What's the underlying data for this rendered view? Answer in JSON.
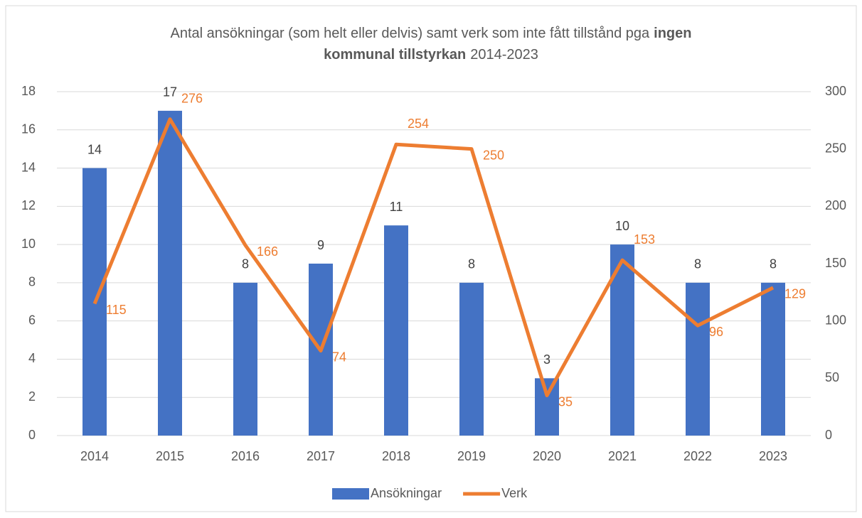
{
  "chart_data": {
    "type": "bar-line",
    "title": [
      [
        {
          "text": "Antal ansökningar (som helt eller delvis) samt verk som inte fått tillstånd pga",
          "bold": false
        },
        {
          "text": "ingen",
          "bold": true
        }
      ],
      [
        {
          "text": "kommunal tillstyrkan",
          "bold": true
        },
        {
          "text": "2014-2023",
          "bold": false
        }
      ]
    ],
    "categories": [
      "2014",
      "2015",
      "2016",
      "2017",
      "2018",
      "2019",
      "2020",
      "2021",
      "2022",
      "2023"
    ],
    "series": [
      {
        "name": "Ansökningar",
        "color": "#4472c4",
        "type": "bar",
        "values": [
          14,
          17,
          8,
          9,
          11,
          8,
          3,
          10,
          8,
          8
        ]
      },
      {
        "name": "Verk",
        "color": "#ed7d31",
        "type": "line",
        "axis": "y2",
        "values": [
          115,
          276,
          166,
          74,
          254,
          250,
          35,
          153,
          96,
          129
        ]
      }
    ],
    "ylim": [
      0,
      18
    ],
    "yticks": [
      0,
      2,
      4,
      6,
      8,
      10,
      12,
      14,
      16,
      18
    ],
    "y2lim": [
      0,
      300
    ],
    "y2ticks": [
      0,
      50,
      100,
      150,
      200,
      250,
      300
    ],
    "grid": true,
    "legend": "bottom"
  }
}
